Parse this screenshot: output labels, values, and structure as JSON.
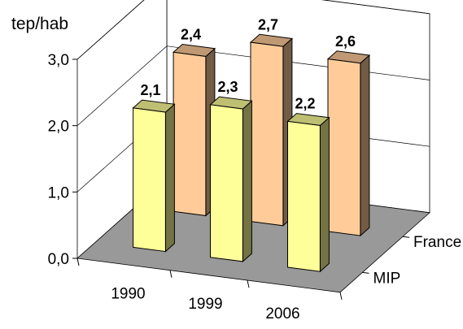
{
  "chart_data": {
    "type": "bar",
    "ylabel": "tep/hab",
    "ylim": [
      0,
      3
    ],
    "yticks": [
      "0,0",
      "1,0",
      "2,0",
      "3,0"
    ],
    "categories": [
      "1990",
      "1999",
      "2006"
    ],
    "series": [
      {
        "name": "France",
        "values": [
          2.4,
          2.7,
          2.6
        ],
        "labels": [
          "2,4",
          "2,7",
          "2,6"
        ],
        "color": "#ffcc99"
      },
      {
        "name": "MIP",
        "values": [
          2.1,
          2.3,
          2.2
        ],
        "labels": [
          "2,1",
          "2,3",
          "2,2"
        ],
        "color": "#ffff99"
      }
    ],
    "floor_color": "#999999",
    "grid": true
  }
}
